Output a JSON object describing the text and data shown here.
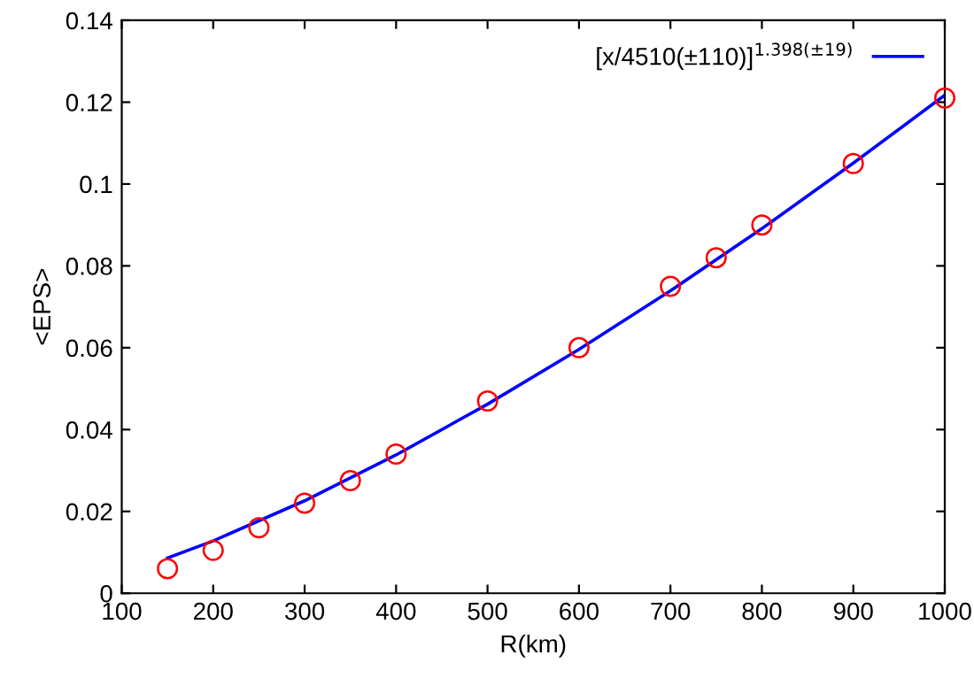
{
  "chart_data": {
    "type": "scatter",
    "xlabel": "R(km)",
    "ylabel": "<EPS>",
    "xlim": [
      100,
      1000
    ],
    "xticks": [
      100,
      200,
      300,
      400,
      500,
      600,
      700,
      800,
      900,
      1000
    ],
    "ylim": [
      0,
      0.14
    ],
    "yticks": [
      0,
      0.02,
      0.04,
      0.06,
      0.08,
      0.1,
      0.12,
      0.14
    ],
    "legend": "top right",
    "grid": false,
    "series": [
      {
        "color": "#ff0000",
        "marker": "circle",
        "x": [
          150,
          200,
          250,
          300,
          350,
          400,
          500,
          600,
          700,
          750,
          800,
          900,
          1000
        ],
        "values": [
          0.006,
          0.0105,
          0.016,
          0.022,
          0.0275,
          0.034,
          0.047,
          0.06,
          0.075,
          0.082,
          0.09,
          0.105,
          0.121
        ]
      },
      {
        "type": "line",
        "name": "[x/4510(±110)]$^{1.398(±19)}$",
        "color": "#0000ff",
        "marker": "none",
        "line_style": "solid",
        "x": [
          150,
          200,
          300,
          400,
          500,
          600,
          700,
          800,
          900,
          1000
        ],
        "values": [
          0.0086,
          0.0128,
          0.0226,
          0.0338,
          0.0462,
          0.0596,
          0.0739,
          0.0891,
          0.1051,
          0.1217
        ]
      }
    ]
  }
}
